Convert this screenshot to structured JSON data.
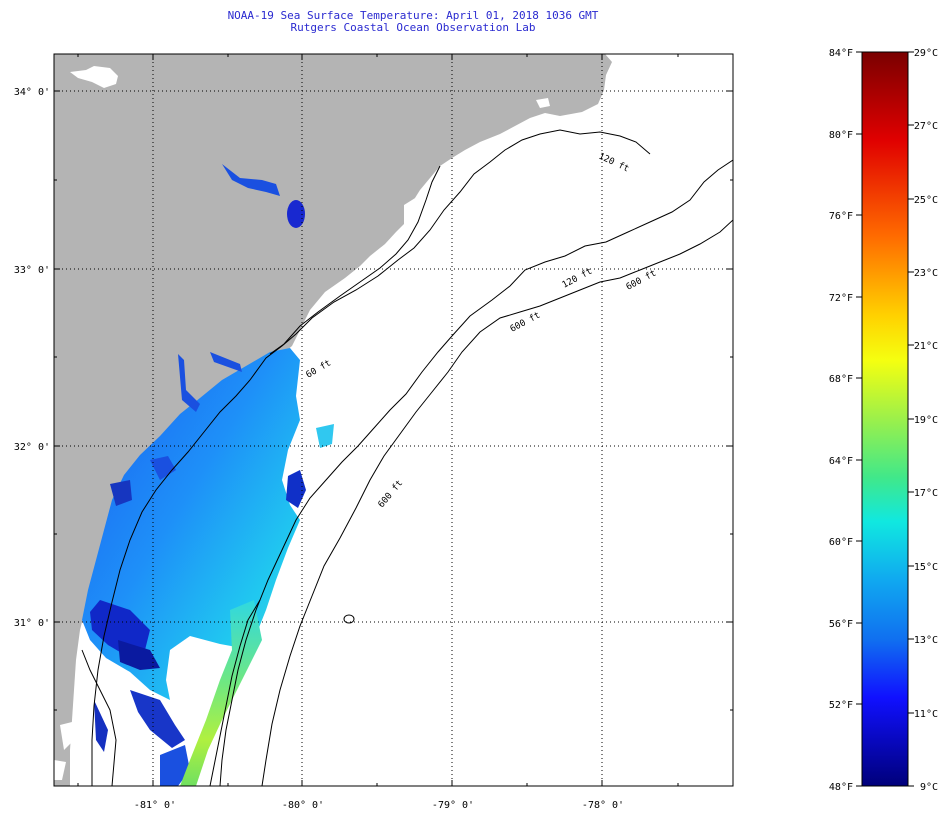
{
  "title": {
    "line1": "NOAA-19 Sea Surface Temperature:  April 01, 2018 1036 GMT",
    "line2": "Rutgers Coastal Ocean Observation Lab"
  },
  "map": {
    "lat_labels": [
      "34° 0'",
      "33° 0'",
      "32° 0'",
      "31° 0'"
    ],
    "lon_labels": [
      "-81° 0'",
      "-80° 0'",
      "-79° 0'",
      "-78° 0'"
    ],
    "contour_labels": [
      "120 ft",
      "600 ft",
      "60 ft",
      "120 ft",
      "600 ft",
      "600 ft"
    ],
    "colors": {
      "land": "#b4b4b4",
      "no_data": "#ffffff",
      "contour": "#000000"
    }
  },
  "colorbar": {
    "f_labels": [
      "84°F",
      "80°F",
      "76°F",
      "72°F",
      "68°F",
      "64°F",
      "60°F",
      "56°F",
      "52°F",
      "48°F"
    ],
    "c_labels": [
      "29°C",
      "27°C",
      "25°C",
      "23°C",
      "21°C",
      "19°C",
      "17°C",
      "15°C",
      "13°C",
      "11°C",
      "9°C"
    ],
    "gradient_top": "#7a0000",
    "gradient_bottom": "#00007a"
  }
}
